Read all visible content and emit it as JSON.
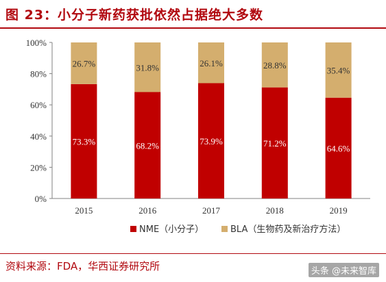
{
  "header": {
    "title": "图 23：小分子新药获批依然占据绝大多数"
  },
  "footer": {
    "source": "资料来源：FDA，华西证券研究所",
    "watermark": "头条 @未来智库"
  },
  "colors": {
    "accent": "#b1080f",
    "nme": "#c00000",
    "bla": "#d4ae6e"
  },
  "chart_data": {
    "type": "bar",
    "stacked": true,
    "categories": [
      "2015",
      "2016",
      "2017",
      "2018",
      "2019"
    ],
    "series": [
      {
        "name": "NME（小分子）",
        "values": [
          73.3,
          68.2,
          73.9,
          71.2,
          64.6
        ],
        "labels": [
          "73.3%",
          "68.2%",
          "73.9%",
          "71.2%",
          "64.6%"
        ]
      },
      {
        "name": "BLA（生物药及新治疗方法）",
        "values": [
          26.7,
          31.8,
          26.1,
          28.8,
          35.4
        ],
        "labels": [
          "26.7%",
          "31.8%",
          "26.1%",
          "28.8%",
          "35.4%"
        ]
      }
    ],
    "yticks": [
      "0%",
      "20%",
      "40%",
      "60%",
      "80%",
      "100%"
    ],
    "ylim": [
      0,
      100
    ],
    "grid": false,
    "legend": "bottom"
  }
}
